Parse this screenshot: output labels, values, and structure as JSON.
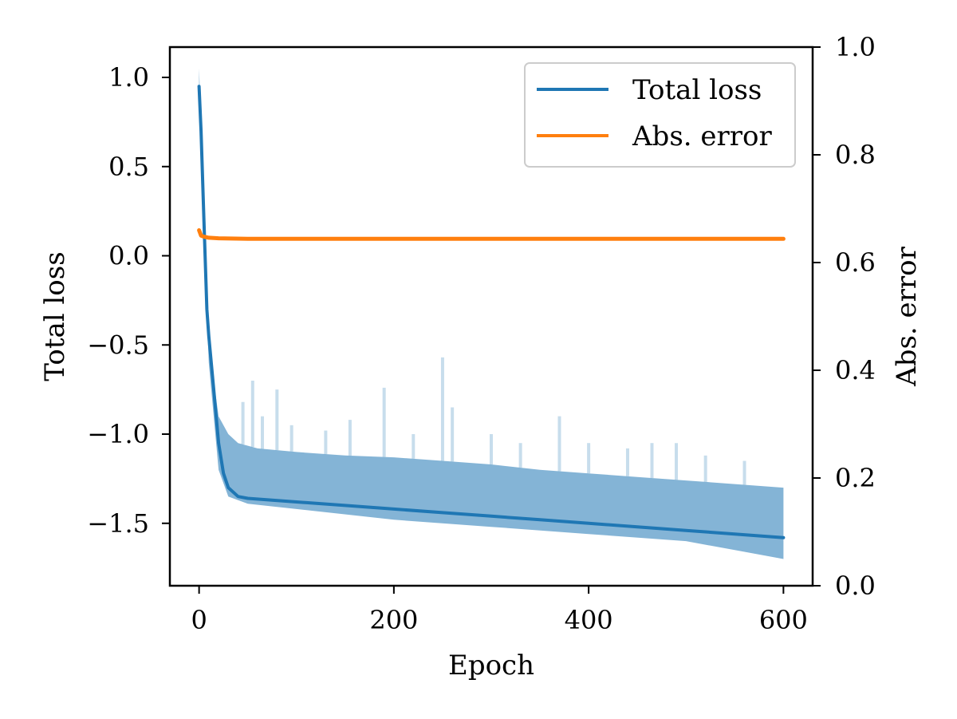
{
  "chart_data": {
    "type": "line",
    "xlabel": "Epoch",
    "ylabel_left": "Total loss",
    "ylabel_right": "Abs. error",
    "xlim": [
      -30,
      630
    ],
    "ylim_left": [
      -1.85,
      1.17
    ],
    "ylim_right": [
      0.0,
      1.0
    ],
    "xticks": [
      0,
      200,
      400,
      600
    ],
    "xtick_labels": [
      "0",
      "200",
      "400",
      "600"
    ],
    "yticks_left": [
      1.0,
      0.5,
      0.0,
      -0.5,
      -1.0,
      -1.5
    ],
    "ytick_labels_left": [
      "1.0",
      "0.5",
      "0.0",
      "−0.5",
      "−1.0",
      "−1.5"
    ],
    "yticks_right": [
      0.0,
      0.2,
      0.4,
      0.6,
      0.8,
      1.0
    ],
    "ytick_labels_right": [
      "0.0",
      "0.2",
      "0.4",
      "0.6",
      "0.8",
      "1.0"
    ],
    "legend_placement": "top-right",
    "legend": [
      "Total loss",
      "Abs. error"
    ],
    "colors": {
      "total_loss": "#1f77b4",
      "abs_error": "#ff7f0e",
      "band": "#1f77b4"
    },
    "series": [
      {
        "name": "Total loss",
        "axis": "left",
        "x": [
          0,
          2,
          5,
          8,
          10,
          15,
          20,
          25,
          30,
          40,
          50,
          75,
          100,
          150,
          200,
          250,
          300,
          350,
          400,
          450,
          500,
          550,
          600
        ],
        "y": [
          0.95,
          0.7,
          0.2,
          -0.3,
          -0.45,
          -0.75,
          -1.05,
          -1.22,
          -1.3,
          -1.35,
          -1.36,
          -1.37,
          -1.38,
          -1.4,
          -1.42,
          -1.44,
          -1.46,
          -1.48,
          -1.5,
          -1.52,
          -1.54,
          -1.56,
          -1.58
        ]
      },
      {
        "name": "Abs. error",
        "axis": "right",
        "x": [
          0,
          2,
          5,
          10,
          20,
          50,
          100,
          200,
          300,
          400,
          500,
          600
        ],
        "y": [
          0.66,
          0.65,
          0.648,
          0.646,
          0.645,
          0.644,
          0.644,
          0.644,
          0.644,
          0.644,
          0.644,
          0.644
        ]
      }
    ],
    "band_lower": {
      "x": [
        0,
        5,
        10,
        20,
        30,
        50,
        100,
        200,
        300,
        400,
        500,
        550,
        600
      ],
      "y": [
        0.85,
        0.05,
        -0.6,
        -1.2,
        -1.35,
        -1.39,
        -1.42,
        -1.48,
        -1.52,
        -1.56,
        -1.6,
        -1.65,
        -1.7
      ]
    },
    "band_upper": {
      "x": [
        0,
        5,
        10,
        15,
        20,
        30,
        40,
        60,
        100,
        150,
        200,
        250,
        300,
        350,
        400,
        450,
        500,
        550,
        600
      ],
      "y": [
        1.05,
        0.3,
        -0.4,
        -0.7,
        -0.9,
        -1.0,
        -1.05,
        -1.08,
        -1.1,
        -1.12,
        -1.13,
        -1.15,
        -1.17,
        -1.2,
        -1.22,
        -1.24,
        -1.26,
        -1.28,
        -1.3
      ]
    },
    "spikes": [
      {
        "x": 45,
        "y": -0.82
      },
      {
        "x": 55,
        "y": -0.7
      },
      {
        "x": 65,
        "y": -0.9
      },
      {
        "x": 80,
        "y": -0.75
      },
      {
        "x": 95,
        "y": -0.95
      },
      {
        "x": 130,
        "y": -0.98
      },
      {
        "x": 155,
        "y": -0.92
      },
      {
        "x": 190,
        "y": -0.74
      },
      {
        "x": 220,
        "y": -1.0
      },
      {
        "x": 250,
        "y": -0.57
      },
      {
        "x": 260,
        "y": -0.85
      },
      {
        "x": 300,
        "y": -1.0
      },
      {
        "x": 330,
        "y": -1.05
      },
      {
        "x": 370,
        "y": -0.9
      },
      {
        "x": 400,
        "y": -1.05
      },
      {
        "x": 440,
        "y": -1.08
      },
      {
        "x": 465,
        "y": -1.05
      },
      {
        "x": 490,
        "y": -1.05
      },
      {
        "x": 520,
        "y": -1.12
      },
      {
        "x": 560,
        "y": -1.15
      }
    ]
  }
}
